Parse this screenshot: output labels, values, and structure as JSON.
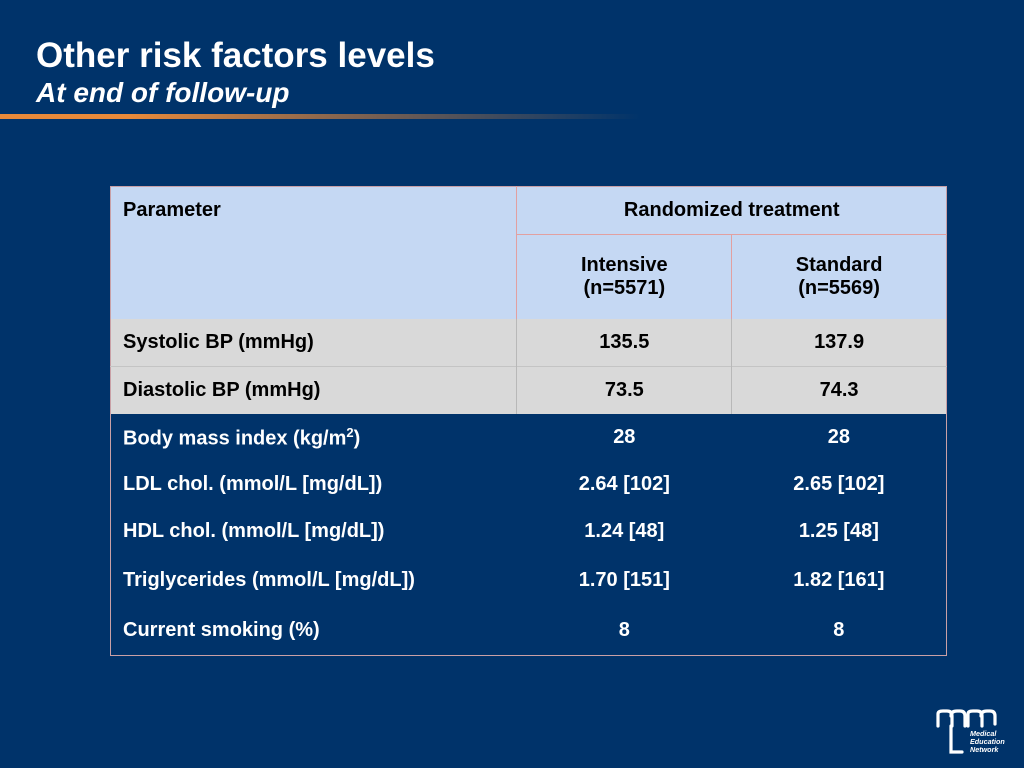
{
  "slide": {
    "title": "Other risk factors levels",
    "subtitle": "At end of follow-up"
  },
  "table": {
    "header_parameter": "Parameter",
    "header_group": "Randomized treatment",
    "col_intensive": "Intensive",
    "col_intensive_n": "(n=5571)",
    "col_standard": "Standard",
    "col_standard_n": "(n=5569)",
    "rows": [
      {
        "label": "Systolic BP (mmHg)",
        "intensive": "135.5",
        "standard": "137.9"
      },
      {
        "label": "Diastolic BP (mmHg)",
        "intensive": "73.5",
        "standard": "74.3"
      },
      {
        "label": "Body mass index (kg/m",
        "label_sup": "2",
        "label_suffix": ")",
        "intensive": "28",
        "standard": "28"
      },
      {
        "label": "LDL chol. (mmol/L [mg/dL])",
        "intensive": "2.64 [102]",
        "standard": "2.65 [102]"
      },
      {
        "label": "HDL chol. (mmol/L [mg/dL])",
        "intensive": "1.24 [48]",
        "standard": "1.25 [48]"
      },
      {
        "label": "Triglycerides (mmol/L [mg/dL])",
        "intensive": "1.70 [151]",
        "standard": "1.82 [161]"
      },
      {
        "label": "Current smoking (%)",
        "intensive": "8",
        "standard": "8"
      }
    ]
  },
  "logo": {
    "line1": "Medical",
    "line2": "Education",
    "line3": "Network"
  },
  "colors": {
    "background": "#00336a",
    "header_fill": "#c5d8f3",
    "grey_fill": "#d9d9d9",
    "accent_rule": "#e98a3a"
  }
}
